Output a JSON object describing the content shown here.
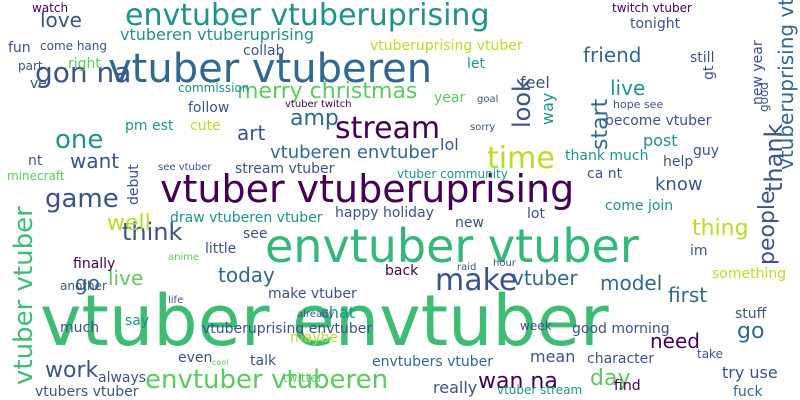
{
  "words": [
    "vtuber envtuber",
    "envtuber vtuber",
    "vtuber vtuberuprising",
    "vtuber vtuberen",
    "envtuber vtuberuprising",
    "stream",
    "merry christmas",
    "time",
    "love",
    "gon na",
    "one",
    "want",
    "game",
    "think",
    "well",
    "go",
    "live",
    "live",
    "work",
    "envtuber vtuberen",
    "make",
    "today",
    "amp",
    "art",
    "vtuberen envtuber",
    "lol",
    "wan na",
    "day",
    "vtuber",
    "model",
    "first",
    "go",
    "need",
    "know",
    "friend",
    "thing",
    "envtubers vtuber",
    "vtuberuprising envtuber",
    "really",
    "mean",
    "character",
    "find",
    "try use",
    "fuck",
    "thank much",
    "post",
    "help",
    "ca nt",
    "come join",
    "im",
    "something",
    "stuff",
    "good morning",
    "tonight",
    "twitch vtuber",
    "still",
    "become vtuber",
    "hope see",
    "feel",
    "let",
    "year",
    "vtuberuprising vtuber",
    "collab",
    "vtuberen vtuberuprising",
    "come hang",
    "fun",
    "part",
    "right",
    "ve",
    "commission",
    "follow",
    "pm est",
    "cute",
    "watch",
    "nt",
    "minecraft",
    "finally",
    "another",
    "much",
    "say",
    "chat",
    "back",
    "make vtuber",
    "little",
    "see",
    "draw vtuberen vtuber",
    "happy holiday",
    "new",
    "lot",
    "vtuber community",
    "see vtuber",
    "stream vtuber",
    "maybe",
    "always",
    "even",
    "talk",
    "vtubers vtuber",
    "week",
    "take",
    "goal",
    "sorry",
    "guy",
    "anime",
    "twitter",
    "already",
    "hour",
    "raid",
    "cool",
    "life",
    "vtuber twitch",
    "vtuber stream",
    "vtuber vtuber",
    "look",
    "way",
    "start",
    "thank",
    "people",
    "vtuberuprising vtuberen",
    "new year",
    "gt",
    "debut",
    "good"
  ]
}
